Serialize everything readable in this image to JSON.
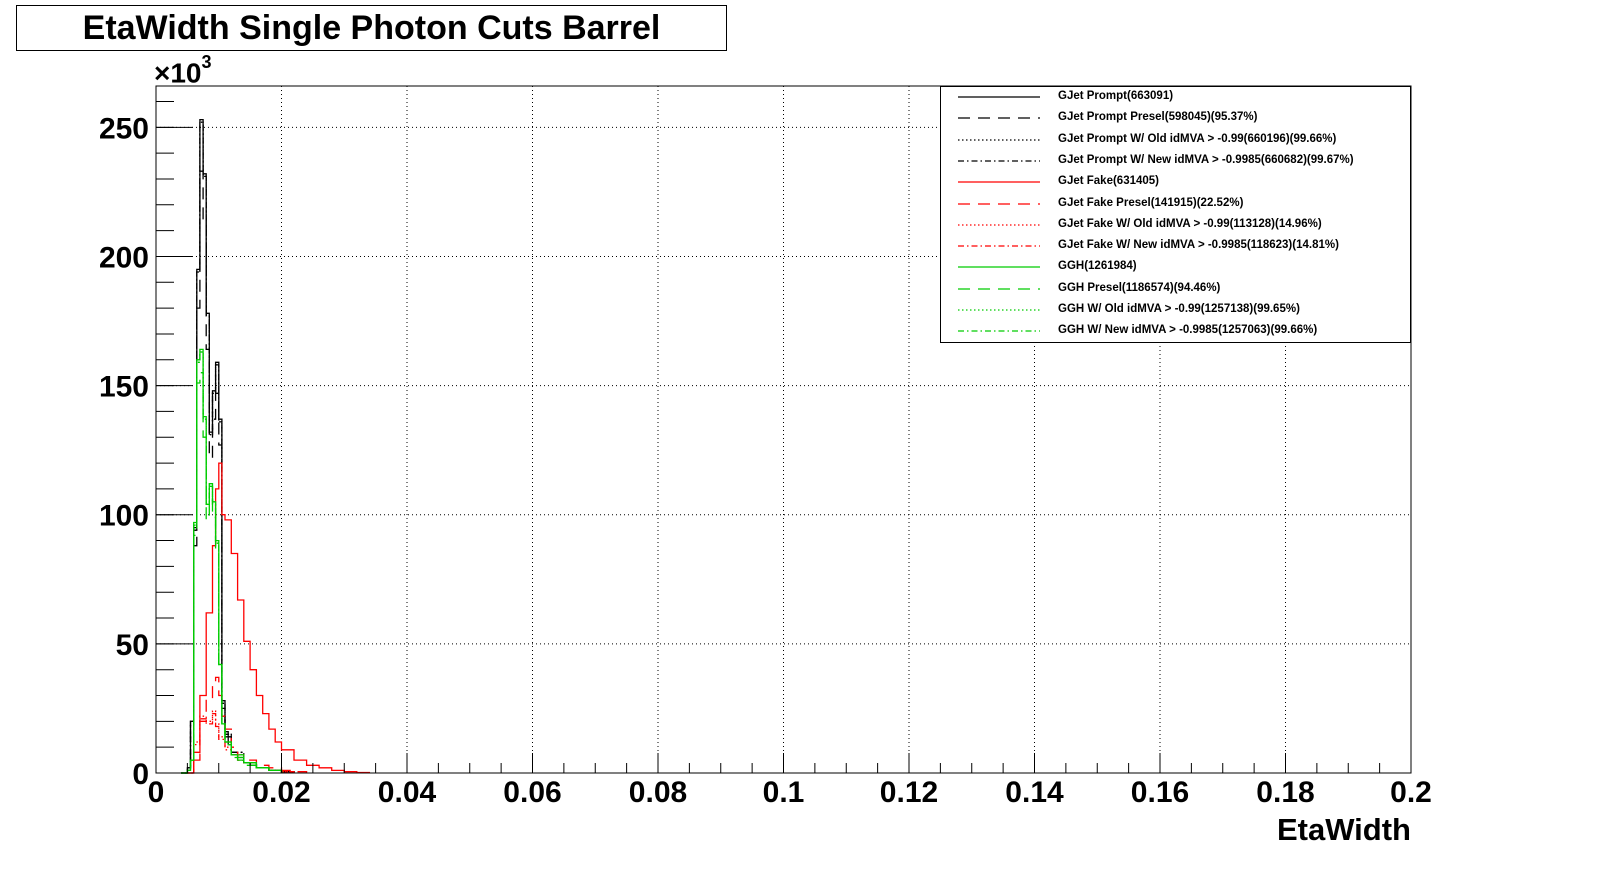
{
  "chart_data": {
    "type": "line",
    "title": "EtaWidth Single Photon Cuts Barrel",
    "xlabel": "EtaWidth",
    "ylabel": "",
    "y_multiplier_label": "×10",
    "y_multiplier_exponent": "3",
    "xlim": [
      0,
      0.2
    ],
    "ylim": [
      0,
      266
    ],
    "x_ticks": [
      "0",
      "0.02",
      "0.04",
      "0.06",
      "0.08",
      "0.1",
      "0.12",
      "0.14",
      "0.16",
      "0.18",
      "0.2"
    ],
    "y_ticks": [
      "0",
      "50",
      "100",
      "150",
      "200",
      "250"
    ],
    "grid": true,
    "legend_position": "top-right",
    "series": [
      {
        "name": "GJet Prompt(663091)",
        "color": "#000000",
        "style": "solid",
        "x": [
          0.004,
          0.005,
          0.0055,
          0.006,
          0.0065,
          0.007,
          0.0075,
          0.008,
          0.0085,
          0.009,
          0.0095,
          0.01,
          0.0105,
          0.011,
          0.0115,
          0.012,
          0.013,
          0.014,
          0.015,
          0.016,
          0.018,
          0.02,
          0.022
        ],
        "y": [
          0,
          2,
          20,
          95,
          195,
          253,
          232,
          178,
          132,
          148,
          159,
          137,
          28,
          16,
          11,
          8,
          6,
          4,
          3,
          2,
          1,
          0.5,
          0
        ]
      },
      {
        "name": "GJet Prompt Presel(598045)(95.37%)",
        "color": "#000000",
        "style": "dashed",
        "x": [
          0.004,
          0.005,
          0.0055,
          0.006,
          0.0065,
          0.007,
          0.0075,
          0.008,
          0.0085,
          0.009,
          0.0095,
          0.01,
          0.0105,
          0.011,
          0.012,
          0.014,
          0.016,
          0.018,
          0.02,
          0.022
        ],
        "y": [
          0,
          1,
          18,
          88,
          180,
          233,
          214,
          164,
          122,
          137,
          147,
          127,
          25,
          14,
          7,
          4,
          2,
          1,
          0.4,
          0
        ]
      },
      {
        "name": "GJet Prompt W/ Old idMVA > -0.99(660196)(99.66%)",
        "color": "#000000",
        "style": "dotted",
        "x": [
          0.004,
          0.005,
          0.0055,
          0.006,
          0.0065,
          0.007,
          0.0075,
          0.008,
          0.0085,
          0.009,
          0.0095,
          0.01,
          0.0105,
          0.011,
          0.012,
          0.014,
          0.016,
          0.018,
          0.02,
          0.022
        ],
        "y": [
          0,
          2,
          20,
          94,
          194,
          252,
          231,
          177,
          131,
          147,
          158,
          136,
          27,
          15,
          8,
          4,
          2,
          1,
          0.5,
          0
        ]
      },
      {
        "name": "GJet Prompt W/ New idMVA > -0.9985(660682)(99.67%)",
        "color": "#000000",
        "style": "dashdot",
        "x": [
          0.004,
          0.005,
          0.0055,
          0.006,
          0.0065,
          0.007,
          0.0075,
          0.008,
          0.0085,
          0.009,
          0.0095,
          0.01,
          0.0105,
          0.011,
          0.012,
          0.014,
          0.016,
          0.018,
          0.02,
          0.022
        ],
        "y": [
          0,
          2,
          20,
          94,
          194,
          252,
          231,
          177,
          131,
          147,
          158,
          136,
          27,
          15,
          8,
          4,
          2,
          1,
          0.5,
          0
        ]
      },
      {
        "name": "GJet Fake(631405)",
        "color": "#ff0000",
        "style": "solid",
        "x": [
          0.005,
          0.006,
          0.007,
          0.008,
          0.009,
          0.0095,
          0.01,
          0.0105,
          0.011,
          0.012,
          0.013,
          0.014,
          0.015,
          0.016,
          0.017,
          0.018,
          0.019,
          0.02,
          0.022,
          0.024,
          0.026,
          0.028,
          0.03,
          0.032,
          0.034
        ],
        "y": [
          0,
          8,
          30,
          62,
          88,
          110,
          120,
          100,
          98,
          85,
          67,
          51,
          40,
          30,
          23,
          17,
          12,
          9,
          5,
          3,
          2,
          1,
          0.5,
          0.2,
          0
        ]
      },
      {
        "name": "GJet Fake Presel(141915)(22.52%)",
        "color": "#ff0000",
        "style": "dashed",
        "x": [
          0.005,
          0.006,
          0.007,
          0.008,
          0.009,
          0.0095,
          0.01,
          0.0105,
          0.011,
          0.012,
          0.013,
          0.014,
          0.016,
          0.018,
          0.02,
          0.022,
          0.024
        ],
        "y": [
          0,
          5,
          20,
          29,
          35,
          37,
          30,
          22,
          17,
          10,
          7,
          5,
          3,
          2,
          1,
          0.5,
          0
        ]
      },
      {
        "name": "GJet Fake W/ Old idMVA > -0.99(113128)(14.96%)",
        "color": "#ff0000",
        "style": "dotted",
        "x": [
          0.005,
          0.006,
          0.007,
          0.008,
          0.009,
          0.0095,
          0.01,
          0.011,
          0.012,
          0.013,
          0.014,
          0.016,
          0.018,
          0.02,
          0.022
        ],
        "y": [
          0,
          12,
          22,
          20,
          24,
          19,
          14,
          10,
          7,
          5,
          4,
          2,
          1,
          0.5,
          0
        ]
      },
      {
        "name": "GJet Fake W/ New idMVA > -0.9985(118623)(14.81%)",
        "color": "#ff0000",
        "style": "dashdot",
        "x": [
          0.005,
          0.006,
          0.007,
          0.008,
          0.009,
          0.0095,
          0.01,
          0.011,
          0.012,
          0.013,
          0.014,
          0.016,
          0.018,
          0.02,
          0.022
        ],
        "y": [
          0,
          11,
          21,
          19,
          23,
          18,
          13,
          9,
          7,
          5,
          4,
          2,
          1,
          0.5,
          0
        ]
      },
      {
        "name": "GGH(1261984)",
        "color": "#00cc00",
        "style": "solid",
        "x": [
          0.004,
          0.005,
          0.0055,
          0.006,
          0.0065,
          0.007,
          0.0075,
          0.008,
          0.0085,
          0.009,
          0.0095,
          0.01,
          0.0105,
          0.011,
          0.012,
          0.013,
          0.014,
          0.016,
          0.018,
          0.02
        ],
        "y": [
          0,
          1,
          5,
          97,
          160,
          164,
          138,
          104,
          112,
          105,
          90,
          42,
          19,
          12,
          7,
          5,
          4,
          2,
          1,
          0
        ]
      },
      {
        "name": "GGH Presel(1186574)(94.46%)",
        "color": "#00cc00",
        "style": "dashed",
        "x": [
          0.004,
          0.005,
          0.0055,
          0.006,
          0.0065,
          0.007,
          0.0075,
          0.008,
          0.0085,
          0.009,
          0.0095,
          0.01,
          0.0105,
          0.011,
          0.012,
          0.014,
          0.016,
          0.018,
          0.02
        ],
        "y": [
          0,
          1,
          5,
          92,
          151,
          155,
          130,
          98,
          106,
          99,
          85,
          40,
          18,
          11,
          6,
          3,
          2,
          1,
          0
        ]
      },
      {
        "name": "GGH W/ Old idMVA > -0.99(1257138)(99.65%)",
        "color": "#00cc00",
        "style": "dotted",
        "x": [
          0.004,
          0.005,
          0.0055,
          0.006,
          0.0065,
          0.007,
          0.0075,
          0.008,
          0.0085,
          0.009,
          0.0095,
          0.01,
          0.0105,
          0.011,
          0.012,
          0.014,
          0.016,
          0.018,
          0.02
        ],
        "y": [
          0,
          1,
          5,
          96,
          159,
          163,
          137,
          104,
          111,
          104,
          89,
          42,
          19,
          12,
          7,
          4,
          2,
          1,
          0
        ]
      },
      {
        "name": "GGH W/ New idMVA > -0.9985(1257063)(99.66%)",
        "color": "#00cc00",
        "style": "dashdot",
        "x": [
          0.004,
          0.005,
          0.0055,
          0.006,
          0.0065,
          0.007,
          0.0075,
          0.008,
          0.0085,
          0.009,
          0.0095,
          0.01,
          0.0105,
          0.011,
          0.012,
          0.014,
          0.016,
          0.018,
          0.02
        ],
        "y": [
          0,
          1,
          5,
          96,
          159,
          163,
          137,
          104,
          111,
          104,
          89,
          42,
          19,
          12,
          7,
          4,
          2,
          1,
          0
        ]
      }
    ]
  }
}
